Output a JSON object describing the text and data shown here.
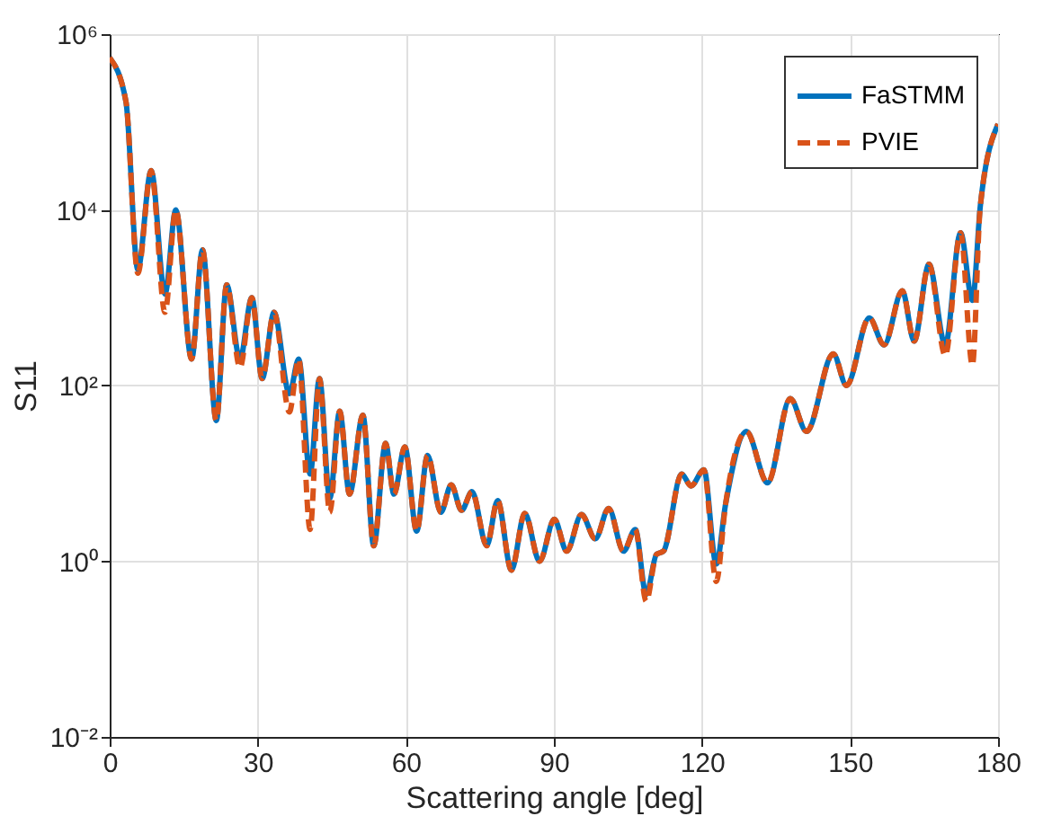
{
  "chart_data": {
    "type": "line",
    "xlabel": "Scattering angle [deg]",
    "ylabel": "S11",
    "x": [
      0,
      3.3,
      5.7,
      8.4,
      11.2,
      13.4,
      16.6,
      18.8,
      21.6,
      23.7,
      26.4,
      28.8,
      30.9,
      33.3,
      36.4,
      38.3,
      40.6,
      42.5,
      44.6,
      46.6,
      48.6,
      51.3,
      53.5,
      55.9,
      57.6,
      59.8,
      62.2,
      64.4,
      67.1,
      69.2,
      71.3,
      73.4,
      76.4,
      78.6,
      81.4,
      84.1,
      87.1,
      90.1,
      92.6,
      95.6,
      98.4,
      101.1,
      104.1,
      106.5,
      108.7,
      110.8,
      112.2,
      115.9,
      117.8,
      120.4,
      122.9,
      124.8,
      129.0,
      133.3,
      137.9,
      141.2,
      146.6,
      149.3,
      153.9,
      156.9,
      160.6,
      163.0,
      166.0,
      169.3,
      172.4,
      174.8,
      176.4,
      180
    ],
    "series": [
      {
        "name": "FaSTMM",
        "color": "#0072bd",
        "line_style": "solid",
        "values": [
          540000.0,
          170000.0,
          2100.0,
          28000.0,
          1100.0,
          10000.0,
          200,
          3500.0,
          40,
          1400.0,
          200,
          1000.0,
          120,
          680,
          81,
          200,
          9.8,
          120,
          5.2,
          51,
          5.8,
          46,
          1.5,
          22,
          5.8,
          20,
          2.2,
          16,
          3.6,
          7.4,
          3.8,
          6.2,
          1.5,
          4.9,
          0.79,
          3.5,
          1.0,
          3.0,
          1.3,
          3.4,
          1.8,
          4.0,
          1.3,
          2.3,
          0.42,
          1.2,
          1.3,
          9.8,
          7.2,
          11,
          0.93,
          4.5,
          30,
          7.8,
          71,
          30,
          230,
          100,
          590,
          290,
          1200.0,
          320,
          2400.0,
          290,
          5500.0,
          930,
          11000.0,
          95000.0
        ]
      },
      {
        "name": "PVIE",
        "color": "#d95319",
        "line_style": "dashed",
        "values": [
          540000.0,
          170000.0,
          1900.0,
          28000.0,
          680,
          10000.0,
          200,
          3500.0,
          40,
          1400.0,
          160,
          1000.0,
          120,
          680,
          50,
          200,
          2.3,
          120,
          3.6,
          51,
          5.8,
          46,
          1.5,
          22,
          5.8,
          20,
          2.2,
          16,
          3.6,
          7.4,
          3.8,
          6.2,
          1.5,
          4.9,
          0.79,
          3.5,
          1.0,
          3.0,
          1.3,
          3.4,
          1.8,
          4.0,
          1.3,
          2.3,
          0.35,
          1.2,
          1.3,
          9.8,
          7.2,
          11,
          0.59,
          4.5,
          30,
          7.8,
          71,
          30,
          230,
          100,
          590,
          290,
          1200.0,
          320,
          2400.0,
          220,
          5500.0,
          170,
          11000.0,
          95000.0
        ]
      }
    ],
    "xlim": [
      0,
      180
    ],
    "xticks": [
      0,
      30,
      60,
      90,
      120,
      150,
      180
    ],
    "ylim": [
      0.01,
      1000000
    ],
    "log": true,
    "yticks": [
      {
        "value": 0.01,
        "label": "10⁻²"
      },
      {
        "value": 1,
        "label": "10⁰"
      },
      {
        "value": 100,
        "label": "10²"
      },
      {
        "value": 10000,
        "label": "10⁴"
      },
      {
        "value": 1000000,
        "label": "10⁶"
      }
    ],
    "grid": true,
    "legend": "top right"
  }
}
